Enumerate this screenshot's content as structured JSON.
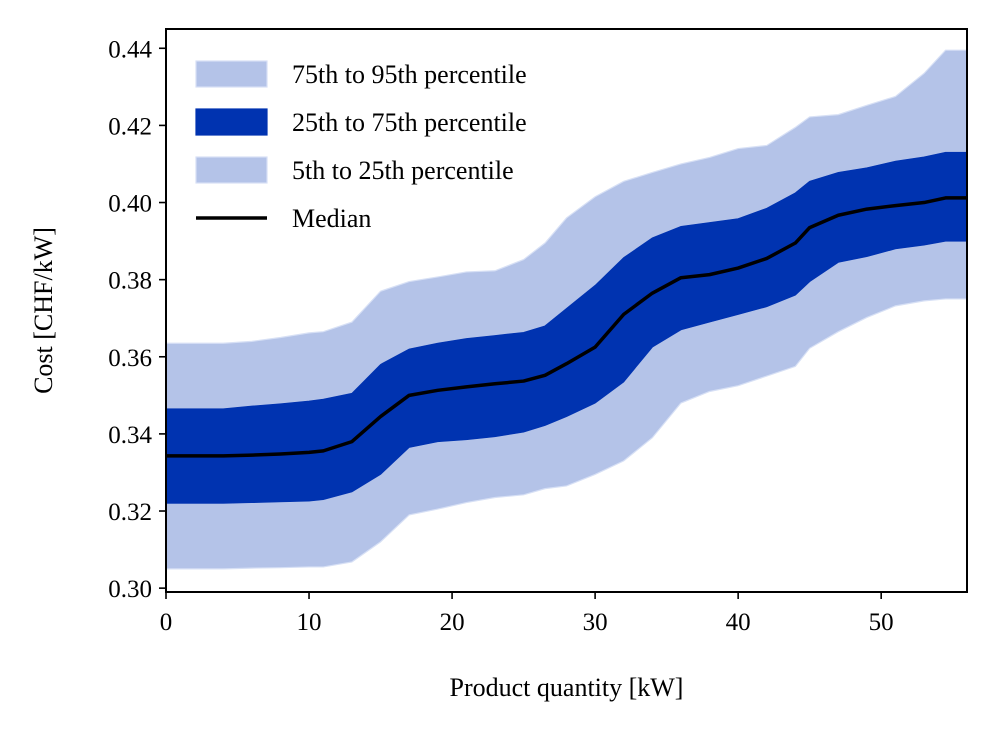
{
  "chart_data": {
    "type": "area",
    "title": "",
    "xlabel": "Product quantity [kW]",
    "ylabel": "Cost [CHF/kW]",
    "xlim": [
      0,
      56
    ],
    "ylim": [
      0.299,
      0.445
    ],
    "xticks": [
      0,
      10,
      20,
      30,
      40,
      50
    ],
    "yticks": [
      0.3,
      0.32,
      0.34,
      0.36,
      0.38,
      0.4,
      0.42,
      0.44
    ],
    "xtick_labels": [
      "0",
      "10",
      "20",
      "30",
      "40",
      "50"
    ],
    "ytick_labels": [
      "0.30",
      "0.32",
      "0.34",
      "0.36",
      "0.38",
      "0.40",
      "0.42",
      "0.44"
    ],
    "grid": false,
    "legend_position": "top-left",
    "colors": {
      "outer_band": "#b4c3e8",
      "inner_band": "#0033b0",
      "median": "#000000"
    },
    "x": [
      0,
      2,
      4,
      6,
      8,
      10,
      11,
      13,
      15,
      17,
      19,
      21,
      23,
      25,
      26.5,
      28,
      30,
      32,
      34,
      36,
      38,
      40,
      42,
      44,
      45,
      47,
      49,
      51,
      53,
      54.5,
      56
    ],
    "series": [
      {
        "name": "P5",
        "values": [
          0.305,
          0.305,
          0.305,
          0.3052,
          0.3053,
          0.3055,
          0.3055,
          0.3068,
          0.312,
          0.319,
          0.3205,
          0.3222,
          0.3235,
          0.3242,
          0.3258,
          0.3265,
          0.3295,
          0.333,
          0.339,
          0.348,
          0.351,
          0.3525,
          0.355,
          0.3575,
          0.3622,
          0.3665,
          0.3702,
          0.3732,
          0.3745,
          0.375,
          0.375
        ]
      },
      {
        "name": "P25",
        "values": [
          0.322,
          0.322,
          0.322,
          0.3222,
          0.3224,
          0.3226,
          0.323,
          0.325,
          0.3295,
          0.3365,
          0.338,
          0.3385,
          0.3393,
          0.3405,
          0.3422,
          0.3445,
          0.348,
          0.3535,
          0.3625,
          0.367,
          0.369,
          0.371,
          0.373,
          0.376,
          0.3795,
          0.3845,
          0.386,
          0.388,
          0.389,
          0.39,
          0.39
        ]
      },
      {
        "name": "Median",
        "values": [
          0.3343,
          0.3343,
          0.3343,
          0.3345,
          0.3348,
          0.3352,
          0.3356,
          0.338,
          0.3445,
          0.35,
          0.3513,
          0.3522,
          0.353,
          0.3537,
          0.3552,
          0.3582,
          0.3625,
          0.371,
          0.3765,
          0.3805,
          0.3813,
          0.383,
          0.3855,
          0.3895,
          0.3935,
          0.3967,
          0.3983,
          0.3992,
          0.4,
          0.4012,
          0.4012
        ]
      },
      {
        "name": "P75",
        "values": [
          0.3465,
          0.3465,
          0.3465,
          0.3472,
          0.3478,
          0.3485,
          0.349,
          0.3505,
          0.358,
          0.362,
          0.3635,
          0.3647,
          0.3655,
          0.3663,
          0.368,
          0.3725,
          0.3785,
          0.3857,
          0.3908,
          0.3938,
          0.3948,
          0.3958,
          0.3985,
          0.4025,
          0.4055,
          0.4078,
          0.409,
          0.4107,
          0.4118,
          0.413,
          0.413
        ]
      },
      {
        "name": "P95",
        "values": [
          0.3635,
          0.3635,
          0.3635,
          0.364,
          0.365,
          0.3662,
          0.3665,
          0.369,
          0.377,
          0.3795,
          0.3807,
          0.382,
          0.3823,
          0.3852,
          0.3895,
          0.396,
          0.4015,
          0.4055,
          0.4078,
          0.41,
          0.4117,
          0.414,
          0.4148,
          0.4195,
          0.4222,
          0.4228,
          0.4252,
          0.4275,
          0.4335,
          0.4395,
          0.4395
        ]
      }
    ],
    "legend": [
      {
        "label": "75th to 95th percentile",
        "kind": "outer"
      },
      {
        "label": "25th to 75th percentile",
        "kind": "inner"
      },
      {
        "label": "5th to 25th percentile",
        "kind": "outer"
      },
      {
        "label": "Median",
        "kind": "line"
      }
    ]
  }
}
